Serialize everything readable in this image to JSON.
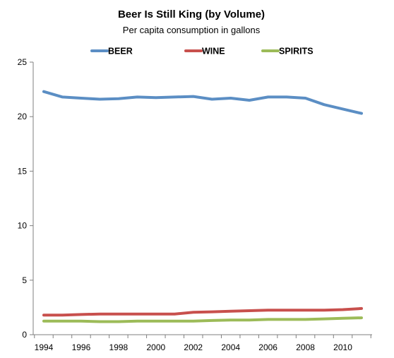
{
  "chart_data": {
    "type": "line",
    "title": "Beer Is Still King (by Volume)",
    "subtitle": "Per capita consumption in gallons",
    "xlabel": "",
    "ylabel": "",
    "x": [
      1994,
      1995,
      1996,
      1997,
      1998,
      1999,
      2000,
      2001,
      2002,
      2003,
      2004,
      2005,
      2006,
      2007,
      2008,
      2009,
      2010,
      2011
    ],
    "x_ticks": [
      "1994",
      "1996",
      "1998",
      "2000",
      "2002",
      "2004",
      "2006",
      "2008",
      "2010"
    ],
    "ylim": [
      0,
      25
    ],
    "y_ticks": [
      "0",
      "5",
      "10",
      "15",
      "20",
      "25"
    ],
    "grid": false,
    "legend_position": "top",
    "series": [
      {
        "name": "BEER",
        "color": "#5b8ec4",
        "values": [
          22.3,
          21.8,
          21.7,
          21.6,
          21.65,
          21.8,
          21.75,
          21.8,
          21.85,
          21.6,
          21.7,
          21.5,
          21.8,
          21.8,
          21.7,
          21.1,
          20.7,
          20.3
        ]
      },
      {
        "name": "WINE",
        "color": "#c8504d",
        "values": [
          1.8,
          1.8,
          1.85,
          1.9,
          1.9,
          1.9,
          1.9,
          1.9,
          2.05,
          2.1,
          2.15,
          2.2,
          2.25,
          2.25,
          2.25,
          2.25,
          2.3,
          2.4
        ]
      },
      {
        "name": "SPIRITS",
        "color": "#9cbb58",
        "values": [
          1.25,
          1.25,
          1.25,
          1.2,
          1.2,
          1.25,
          1.25,
          1.25,
          1.25,
          1.3,
          1.35,
          1.35,
          1.4,
          1.4,
          1.4,
          1.45,
          1.5,
          1.55
        ]
      }
    ]
  }
}
